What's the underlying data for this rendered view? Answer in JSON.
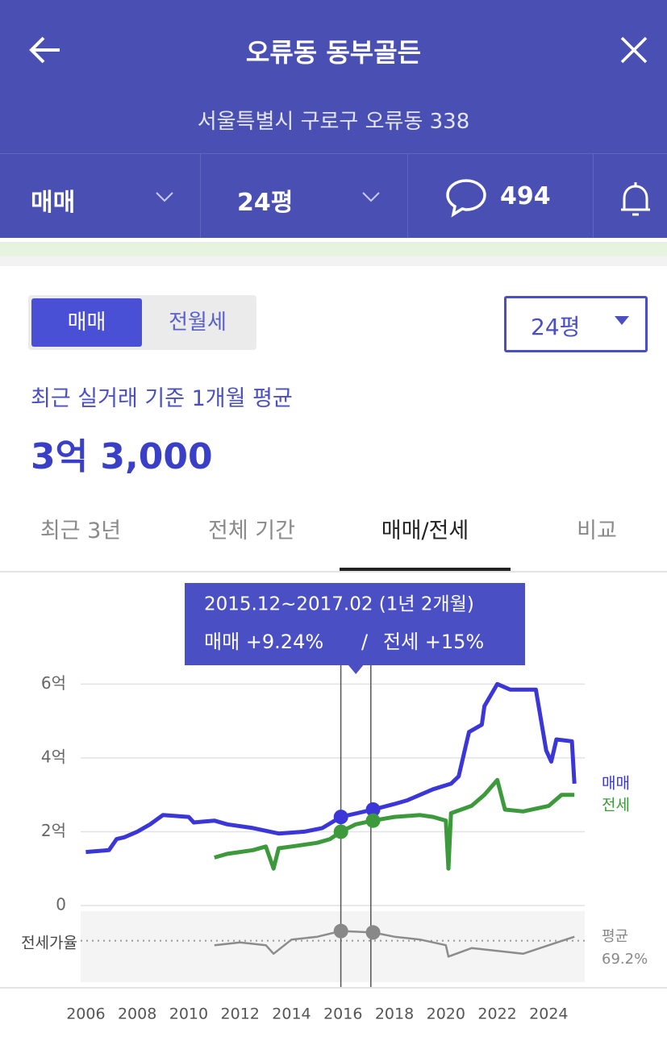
{
  "header": {
    "title": "오류동 동부골든",
    "address": "서울특별시 구로구 오류동 338",
    "deal_type": "매매",
    "size": "24평",
    "comments": "494"
  },
  "summary": {
    "toggle": [
      "매매",
      "전월세"
    ],
    "size_select": "24평",
    "caption": "최근 실거래 기준 1개월 평균",
    "price": "3억 3,000"
  },
  "tabs": [
    "최근 3년",
    "전체 기간",
    "매매/전세",
    "비교"
  ],
  "chart_data": {
    "type": "line",
    "tooltip": {
      "period": "2015.12~2017.02 (1년 2개월)",
      "sale_change": "매매 +9.24%",
      "separator": "/",
      "jeonse_change": "전세 +15%"
    },
    "xlim": [
      2005.8,
      2025.4
    ],
    "xticks": [
      2006,
      2008,
      2010,
      2012,
      2014,
      2016,
      2018,
      2020,
      2022,
      2024
    ],
    "ylim": [
      0,
      6.4
    ],
    "yticks": [
      0,
      {
        "value": 2,
        "label": "2억"
      },
      {
        "value": 4,
        "label": "4억"
      },
      {
        "value": 6,
        "label": "6억"
      }
    ],
    "series": [
      {
        "name": "매매",
        "color": "#3a36d8",
        "x": [
          2006.0,
          2006.9,
          2007.2,
          2007.5,
          2008.0,
          2008.5,
          2009.0,
          2010.0,
          2010.2,
          2011.0,
          2011.5,
          2012.5,
          2013.5,
          2014.5,
          2015.2,
          2015.92,
          2017.17,
          2018.0,
          2018.5,
          2019.5,
          2020.2,
          2020.5,
          2020.9,
          2021.4,
          2021.5,
          2022.0,
          2022.5,
          2023.5,
          2023.9,
          2024.1,
          2024.3,
          2024.9,
          2025.0
        ],
        "values": [
          1.45,
          1.5,
          1.8,
          1.85,
          2.0,
          2.2,
          2.45,
          2.4,
          2.25,
          2.3,
          2.2,
          2.1,
          1.95,
          2.0,
          2.1,
          2.4,
          2.6,
          2.75,
          2.85,
          3.15,
          3.3,
          3.5,
          4.7,
          4.9,
          5.4,
          6.0,
          5.85,
          5.85,
          4.2,
          3.9,
          4.5,
          4.45,
          3.3
        ]
      },
      {
        "name": "전세",
        "color": "#3c9a3c",
        "x": [
          2011.0,
          2011.5,
          2012.0,
          2012.5,
          2013.0,
          2013.3,
          2013.5,
          2014.0,
          2015.0,
          2015.5,
          2015.92,
          2016.5,
          2017.17,
          2018.0,
          2019.0,
          2019.5,
          2020.0,
          2020.1,
          2020.2,
          2021.0,
          2021.5,
          2022.0,
          2022.3,
          2023.0,
          2024.0,
          2024.5,
          2025.0
        ],
        "values": [
          1.3,
          1.4,
          1.45,
          1.5,
          1.6,
          1.0,
          1.55,
          1.6,
          1.7,
          1.8,
          2.0,
          2.2,
          2.3,
          2.4,
          2.45,
          2.4,
          2.3,
          1.0,
          2.5,
          2.7,
          3.0,
          3.4,
          2.6,
          2.55,
          2.7,
          3.0,
          3.0
        ]
      }
    ],
    "ratio": {
      "name": "전세가율",
      "color": "#8c8c8c",
      "y2lim": [
        40,
        90
      ],
      "x": [
        2011.0,
        2012.0,
        2013.0,
        2013.3,
        2014.0,
        2015.0,
        2015.92,
        2017.17,
        2018.0,
        2019.0,
        2020.0,
        2020.1,
        2021.0,
        2022.0,
        2023.0,
        2024.0,
        2025.0
      ],
      "values": [
        66,
        68,
        66,
        60,
        70,
        72,
        76,
        75,
        72,
        70,
        66,
        58,
        64,
        62,
        60,
        66,
        72
      ],
      "average": {
        "label": "평균",
        "value": 69.2,
        "value_label": "69.2%"
      }
    }
  }
}
